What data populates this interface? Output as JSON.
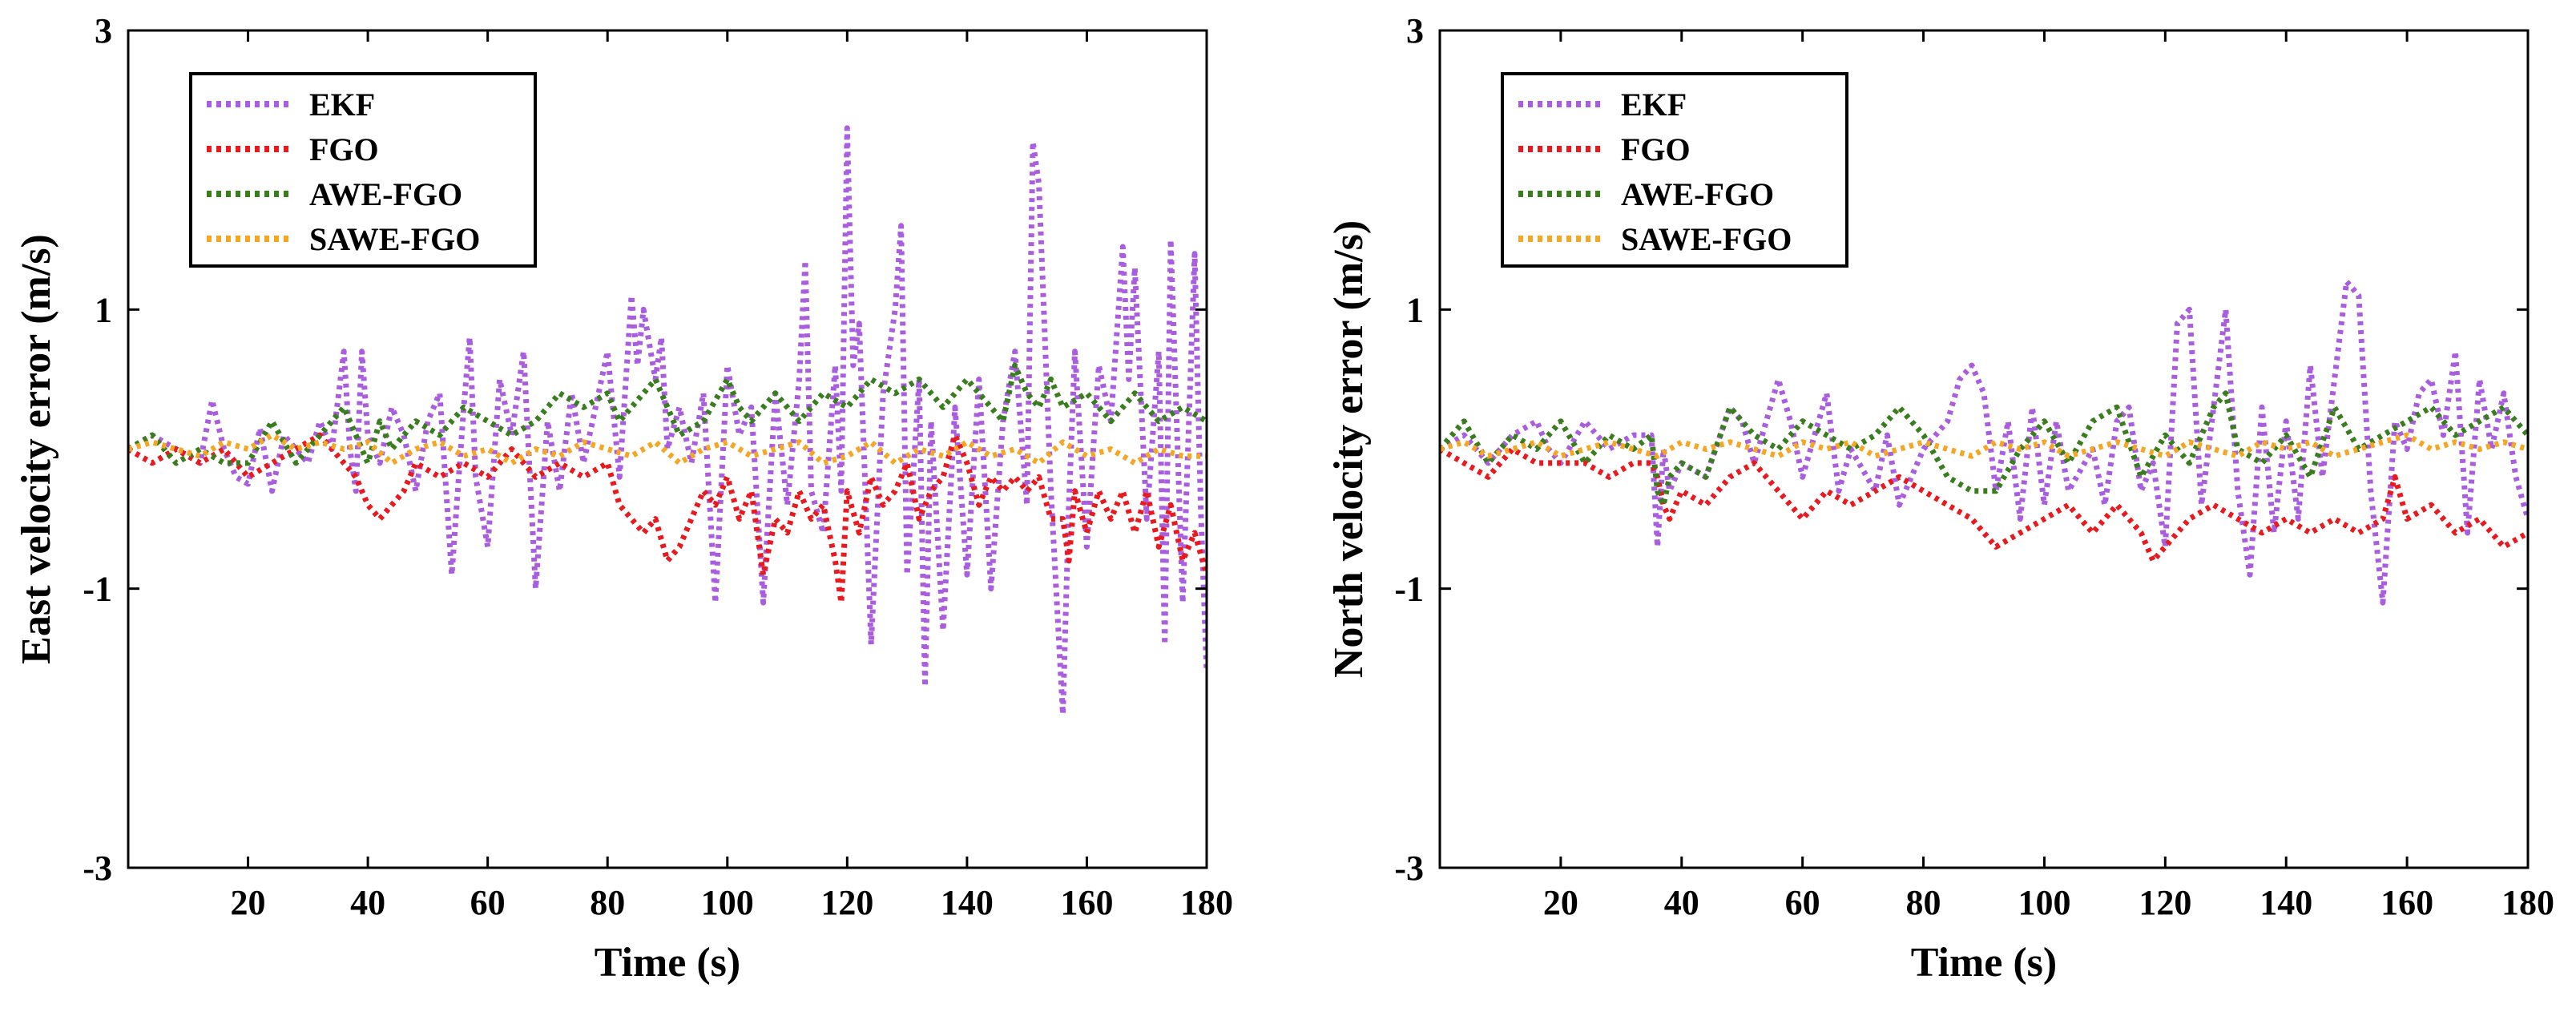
{
  "colors": {
    "EKF": "#a95ee0",
    "FGO": "#e8191f",
    "AWE-FGO": "#3a7d1e",
    "SAWE-FGO": "#f5a623"
  },
  "chart_data": [
    {
      "type": "line",
      "title": "",
      "xlabel": "Time (s)",
      "ylabel": "East velocity error (m/s)",
      "xlim": [
        0,
        180
      ],
      "ylim": [
        -3,
        3
      ],
      "xticks": [
        20,
        40,
        60,
        80,
        100,
        120,
        140,
        160,
        180
      ],
      "yticks": [
        -3,
        -1,
        1,
        3
      ],
      "legend": [
        "EKF",
        "FGO",
        "AWE-FGO",
        "SAWE-FGO"
      ],
      "legend_position": "top-left",
      "series": [
        {
          "name": "EKF",
          "x": [
            0,
            4,
            8,
            12,
            14,
            16,
            18,
            20,
            22,
            24,
            26,
            28,
            30,
            32,
            34,
            36,
            37,
            38,
            39,
            40,
            42,
            44,
            46,
            48,
            50,
            52,
            54,
            56,
            57,
            58,
            60,
            62,
            64,
            66,
            68,
            70,
            72,
            74,
            76,
            78,
            80,
            82,
            84,
            85,
            86,
            88,
            89,
            90,
            92,
            94,
            96,
            98,
            100,
            102,
            104,
            106,
            108,
            110,
            112,
            113,
            114,
            116,
            118,
            119,
            120,
            121,
            122,
            124,
            126,
            128,
            129,
            130,
            132,
            133,
            134,
            136,
            138,
            140,
            142,
            144,
            146,
            148,
            150,
            151,
            152,
            154,
            156,
            157,
            158,
            160,
            162,
            164,
            166,
            167,
            168,
            170,
            172,
            173,
            174,
            176,
            178,
            179,
            180
          ],
          "values": [
            0.0,
            0.1,
            0.0,
            -0.1,
            0.35,
            0.0,
            -0.2,
            -0.25,
            0.15,
            -0.3,
            0.1,
            0.0,
            -0.1,
            0.2,
            0.0,
            0.7,
            0.0,
            -0.3,
            0.7,
            0.1,
            -0.1,
            0.3,
            0.1,
            -0.3,
            0.2,
            0.4,
            -0.9,
            0.3,
            0.8,
            -0.2,
            -0.7,
            0.5,
            0.1,
            0.7,
            -1.0,
            0.2,
            -0.3,
            0.4,
            -0.1,
            0.3,
            0.7,
            -0.2,
            1.1,
            0.6,
            1.0,
            0.5,
            0.8,
            0.0,
            0.3,
            -0.1,
            0.4,
            -1.1,
            0.6,
            0.1,
            0.3,
            -1.1,
            0.4,
            -0.4,
            0.5,
            1.35,
            -0.3,
            -0.6,
            0.6,
            -0.3,
            2.3,
            0.6,
            0.9,
            -1.4,
            0.4,
            1.0,
            1.6,
            -0.9,
            0.5,
            -1.7,
            0.2,
            -1.3,
            0.3,
            -0.9,
            0.5,
            -1.0,
            0.2,
            0.7,
            -0.4,
            2.2,
            1.9,
            -0.3,
            -1.9,
            -0.4,
            0.7,
            -0.7,
            0.6,
            0.2,
            1.45,
            0.5,
            1.3,
            -0.5,
            0.7,
            -1.4,
            1.5,
            -1.1,
            1.4,
            -0.4,
            -1.6
          ]
        },
        {
          "name": "FGO",
          "x": [
            0,
            4,
            8,
            12,
            16,
            20,
            24,
            28,
            32,
            36,
            38,
            40,
            42,
            44,
            46,
            48,
            52,
            56,
            60,
            64,
            68,
            72,
            76,
            80,
            82,
            84,
            86,
            88,
            90,
            92,
            94,
            96,
            98,
            100,
            102,
            104,
            106,
            108,
            110,
            112,
            114,
            116,
            118,
            119,
            120,
            122,
            124,
            126,
            128,
            130,
            132,
            134,
            136,
            138,
            140,
            142,
            144,
            146,
            148,
            150,
            152,
            154,
            156,
            157,
            158,
            160,
            162,
            164,
            166,
            168,
            170,
            172,
            174,
            176,
            178,
            180
          ],
          "values": [
            0.0,
            -0.1,
            0.0,
            -0.1,
            0.0,
            -0.2,
            -0.1,
            0.0,
            0.1,
            -0.1,
            -0.2,
            -0.4,
            -0.5,
            -0.4,
            -0.3,
            -0.1,
            -0.2,
            -0.1,
            -0.2,
            0.0,
            -0.2,
            -0.1,
            -0.2,
            -0.1,
            -0.4,
            -0.5,
            -0.6,
            -0.5,
            -0.8,
            -0.7,
            -0.5,
            -0.3,
            -0.4,
            -0.2,
            -0.5,
            -0.3,
            -0.9,
            -0.5,
            -0.6,
            -0.3,
            -0.5,
            -0.4,
            -0.8,
            -1.1,
            -0.3,
            -0.6,
            -0.2,
            -0.4,
            -0.3,
            -0.1,
            -0.5,
            -0.3,
            -0.2,
            0.1,
            -0.1,
            -0.4,
            -0.2,
            -0.3,
            -0.2,
            -0.3,
            -0.2,
            -0.5,
            -0.5,
            -0.8,
            -0.3,
            -0.6,
            -0.3,
            -0.5,
            -0.3,
            -0.6,
            -0.3,
            -0.7,
            -0.4,
            -0.8,
            -0.6,
            -0.9
          ]
        },
        {
          "name": "AWE-FGO",
          "x": [
            0,
            4,
            8,
            12,
            16,
            20,
            24,
            28,
            32,
            36,
            38,
            40,
            42,
            44,
            48,
            52,
            56,
            60,
            64,
            68,
            72,
            76,
            80,
            82,
            84,
            88,
            92,
            96,
            100,
            102,
            104,
            108,
            112,
            116,
            120,
            124,
            128,
            132,
            136,
            140,
            144,
            146,
            148,
            150,
            152,
            154,
            156,
            160,
            164,
            168,
            172,
            176,
            180
          ],
          "values": [
            0.0,
            0.1,
            -0.1,
            0.0,
            -0.1,
            -0.1,
            0.2,
            -0.1,
            0.1,
            0.3,
            0.1,
            -0.1,
            0.2,
            0.0,
            0.2,
            0.1,
            0.3,
            0.2,
            0.1,
            0.2,
            0.4,
            0.3,
            0.4,
            0.2,
            0.3,
            0.5,
            0.1,
            0.2,
            0.5,
            0.3,
            0.2,
            0.4,
            0.2,
            0.4,
            0.3,
            0.5,
            0.4,
            0.5,
            0.3,
            0.5,
            0.3,
            0.2,
            0.6,
            0.4,
            0.3,
            0.5,
            0.3,
            0.4,
            0.2,
            0.4,
            0.2,
            0.3,
            0.2
          ]
        },
        {
          "name": "SAWE-FGO",
          "x": [
            0,
            4,
            8,
            12,
            16,
            20,
            24,
            28,
            32,
            36,
            40,
            44,
            48,
            52,
            56,
            60,
            64,
            68,
            72,
            76,
            80,
            84,
            88,
            92,
            96,
            100,
            104,
            108,
            112,
            116,
            120,
            124,
            128,
            132,
            136,
            140,
            144,
            148,
            152,
            156,
            160,
            164,
            168,
            172,
            176,
            180
          ],
          "values": [
            0.0,
            0.05,
            0.0,
            -0.05,
            0.05,
            0.0,
            0.1,
            0.0,
            0.05,
            0.0,
            0.05,
            -0.1,
            0.0,
            0.05,
            -0.05,
            0.0,
            -0.1,
            0.0,
            -0.05,
            0.05,
            0.0,
            -0.05,
            0.05,
            -0.1,
            0.0,
            0.05,
            -0.05,
            0.0,
            0.05,
            -0.1,
            -0.05,
            0.05,
            -0.1,
            0.0,
            -0.05,
            0.05,
            -0.05,
            0.0,
            -0.1,
            0.05,
            -0.05,
            0.0,
            -0.1,
            0.0,
            -0.05,
            -0.05
          ]
        }
      ]
    },
    {
      "type": "line",
      "title": "",
      "xlabel": "Time (s)",
      "ylabel": "North velocity error (m/s)",
      "xlim": [
        0,
        180
      ],
      "ylim": [
        -3,
        3
      ],
      "xticks": [
        20,
        40,
        60,
        80,
        100,
        120,
        140,
        160,
        180
      ],
      "yticks": [
        -3,
        -1,
        1,
        3
      ],
      "legend": [
        "EKF",
        "FGO",
        "AWE-FGO",
        "SAWE-FGO"
      ],
      "legend_position": "top-left",
      "series": [
        {
          "name": "EKF",
          "x": [
            0,
            4,
            8,
            12,
            16,
            18,
            20,
            24,
            28,
            32,
            35,
            36,
            37,
            38,
            40,
            44,
            48,
            50,
            52,
            56,
            58,
            60,
            64,
            66,
            68,
            72,
            74,
            76,
            80,
            84,
            86,
            88,
            90,
            92,
            94,
            96,
            98,
            100,
            102,
            104,
            108,
            110,
            112,
            114,
            116,
            118,
            120,
            122,
            124,
            126,
            128,
            130,
            132,
            134,
            136,
            138,
            140,
            142,
            144,
            146,
            148,
            150,
            152,
            154,
            156,
            158,
            160,
            162,
            164,
            166,
            168,
            170,
            172,
            174,
            176,
            178,
            180
          ],
          "values": [
            0.0,
            0.1,
            -0.1,
            0.1,
            0.2,
            0.0,
            -0.1,
            0.2,
            0.0,
            0.1,
            0.1,
            -0.7,
            0.0,
            -0.3,
            -0.1,
            -0.2,
            0.3,
            0.2,
            -0.1,
            0.5,
            0.2,
            -0.2,
            0.4,
            -0.3,
            0.0,
            -0.3,
            0.1,
            -0.4,
            0.0,
            0.2,
            0.5,
            0.6,
            0.4,
            -0.3,
            0.2,
            -0.5,
            0.3,
            -0.4,
            0.2,
            -0.3,
            0.0,
            -0.4,
            0.2,
            0.3,
            -0.3,
            -0.1,
            -0.7,
            0.9,
            1.0,
            -0.4,
            0.3,
            1.0,
            -0.3,
            -0.9,
            0.3,
            -0.6,
            0.2,
            -0.5,
            0.6,
            -0.2,
            0.5,
            1.2,
            1.1,
            -0.3,
            -1.1,
            0.2,
            0.0,
            0.4,
            0.5,
            0.1,
            0.7,
            -0.6,
            0.5,
            0.0,
            0.4,
            -0.2,
            -0.5
          ]
        },
        {
          "name": "FGO",
          "x": [
            0,
            4,
            8,
            12,
            16,
            20,
            24,
            28,
            32,
            35,
            36,
            37,
            38,
            40,
            44,
            48,
            52,
            56,
            60,
            64,
            68,
            72,
            76,
            80,
            84,
            88,
            92,
            96,
            100,
            104,
            108,
            112,
            116,
            118,
            120,
            124,
            128,
            132,
            136,
            140,
            144,
            148,
            152,
            156,
            158,
            160,
            164,
            168,
            172,
            176,
            180
          ],
          "values": [
            0.0,
            -0.1,
            -0.2,
            0.0,
            -0.1,
            -0.1,
            -0.1,
            -0.2,
            -0.1,
            -0.1,
            -0.2,
            -0.4,
            -0.5,
            -0.3,
            -0.4,
            -0.2,
            -0.1,
            -0.3,
            -0.5,
            -0.3,
            -0.4,
            -0.3,
            -0.2,
            -0.3,
            -0.4,
            -0.5,
            -0.7,
            -0.6,
            -0.5,
            -0.4,
            -0.6,
            -0.4,
            -0.6,
            -0.8,
            -0.7,
            -0.5,
            -0.4,
            -0.5,
            -0.6,
            -0.5,
            -0.6,
            -0.5,
            -0.6,
            -0.5,
            -0.2,
            -0.5,
            -0.4,
            -0.6,
            -0.5,
            -0.7,
            -0.6
          ]
        },
        {
          "name": "AWE-FGO",
          "x": [
            0,
            4,
            8,
            12,
            16,
            20,
            24,
            28,
            32,
            35,
            36,
            37,
            38,
            40,
            44,
            48,
            52,
            56,
            60,
            64,
            68,
            72,
            76,
            80,
            84,
            88,
            92,
            96,
            100,
            104,
            108,
            112,
            116,
            120,
            124,
            128,
            130,
            132,
            136,
            140,
            144,
            148,
            152,
            156,
            160,
            164,
            168,
            172,
            176,
            180
          ],
          "values": [
            0.0,
            0.2,
            -0.1,
            0.1,
            0.0,
            0.2,
            -0.1,
            0.1,
            0.0,
            0.1,
            -0.3,
            -0.4,
            -0.2,
            -0.1,
            -0.2,
            0.3,
            0.1,
            0.0,
            0.2,
            0.1,
            0.0,
            0.1,
            0.3,
            0.1,
            -0.2,
            -0.3,
            -0.3,
            0.0,
            0.2,
            -0.1,
            0.2,
            0.3,
            -0.2,
            0.1,
            -0.1,
            0.3,
            0.4,
            0.0,
            -0.1,
            0.1,
            -0.2,
            0.3,
            0.0,
            0.1,
            0.2,
            0.3,
            0.1,
            0.2,
            0.3,
            0.1
          ]
        },
        {
          "name": "SAWE-FGO",
          "x": [
            0,
            4,
            8,
            12,
            16,
            20,
            24,
            28,
            32,
            36,
            40,
            44,
            48,
            52,
            56,
            60,
            64,
            68,
            72,
            76,
            80,
            84,
            88,
            92,
            96,
            100,
            104,
            108,
            112,
            116,
            120,
            124,
            128,
            132,
            136,
            140,
            144,
            148,
            152,
            156,
            160,
            164,
            168,
            172,
            176,
            180
          ],
          "values": [
            0.0,
            0.05,
            -0.05,
            0.0,
            0.05,
            -0.05,
            0.0,
            0.05,
            0.0,
            -0.05,
            0.05,
            0.0,
            0.05,
            0.0,
            -0.05,
            0.05,
            0.0,
            0.05,
            -0.05,
            0.0,
            0.05,
            0.0,
            -0.05,
            0.05,
            0.0,
            0.05,
            -0.05,
            0.0,
            0.05,
            0.0,
            -0.05,
            0.05,
            0.0,
            -0.05,
            0.05,
            0.0,
            0.05,
            -0.05,
            0.0,
            0.05,
            0.1,
            0.0,
            0.05,
            0.0,
            0.05,
            0.0
          ]
        }
      ]
    }
  ]
}
